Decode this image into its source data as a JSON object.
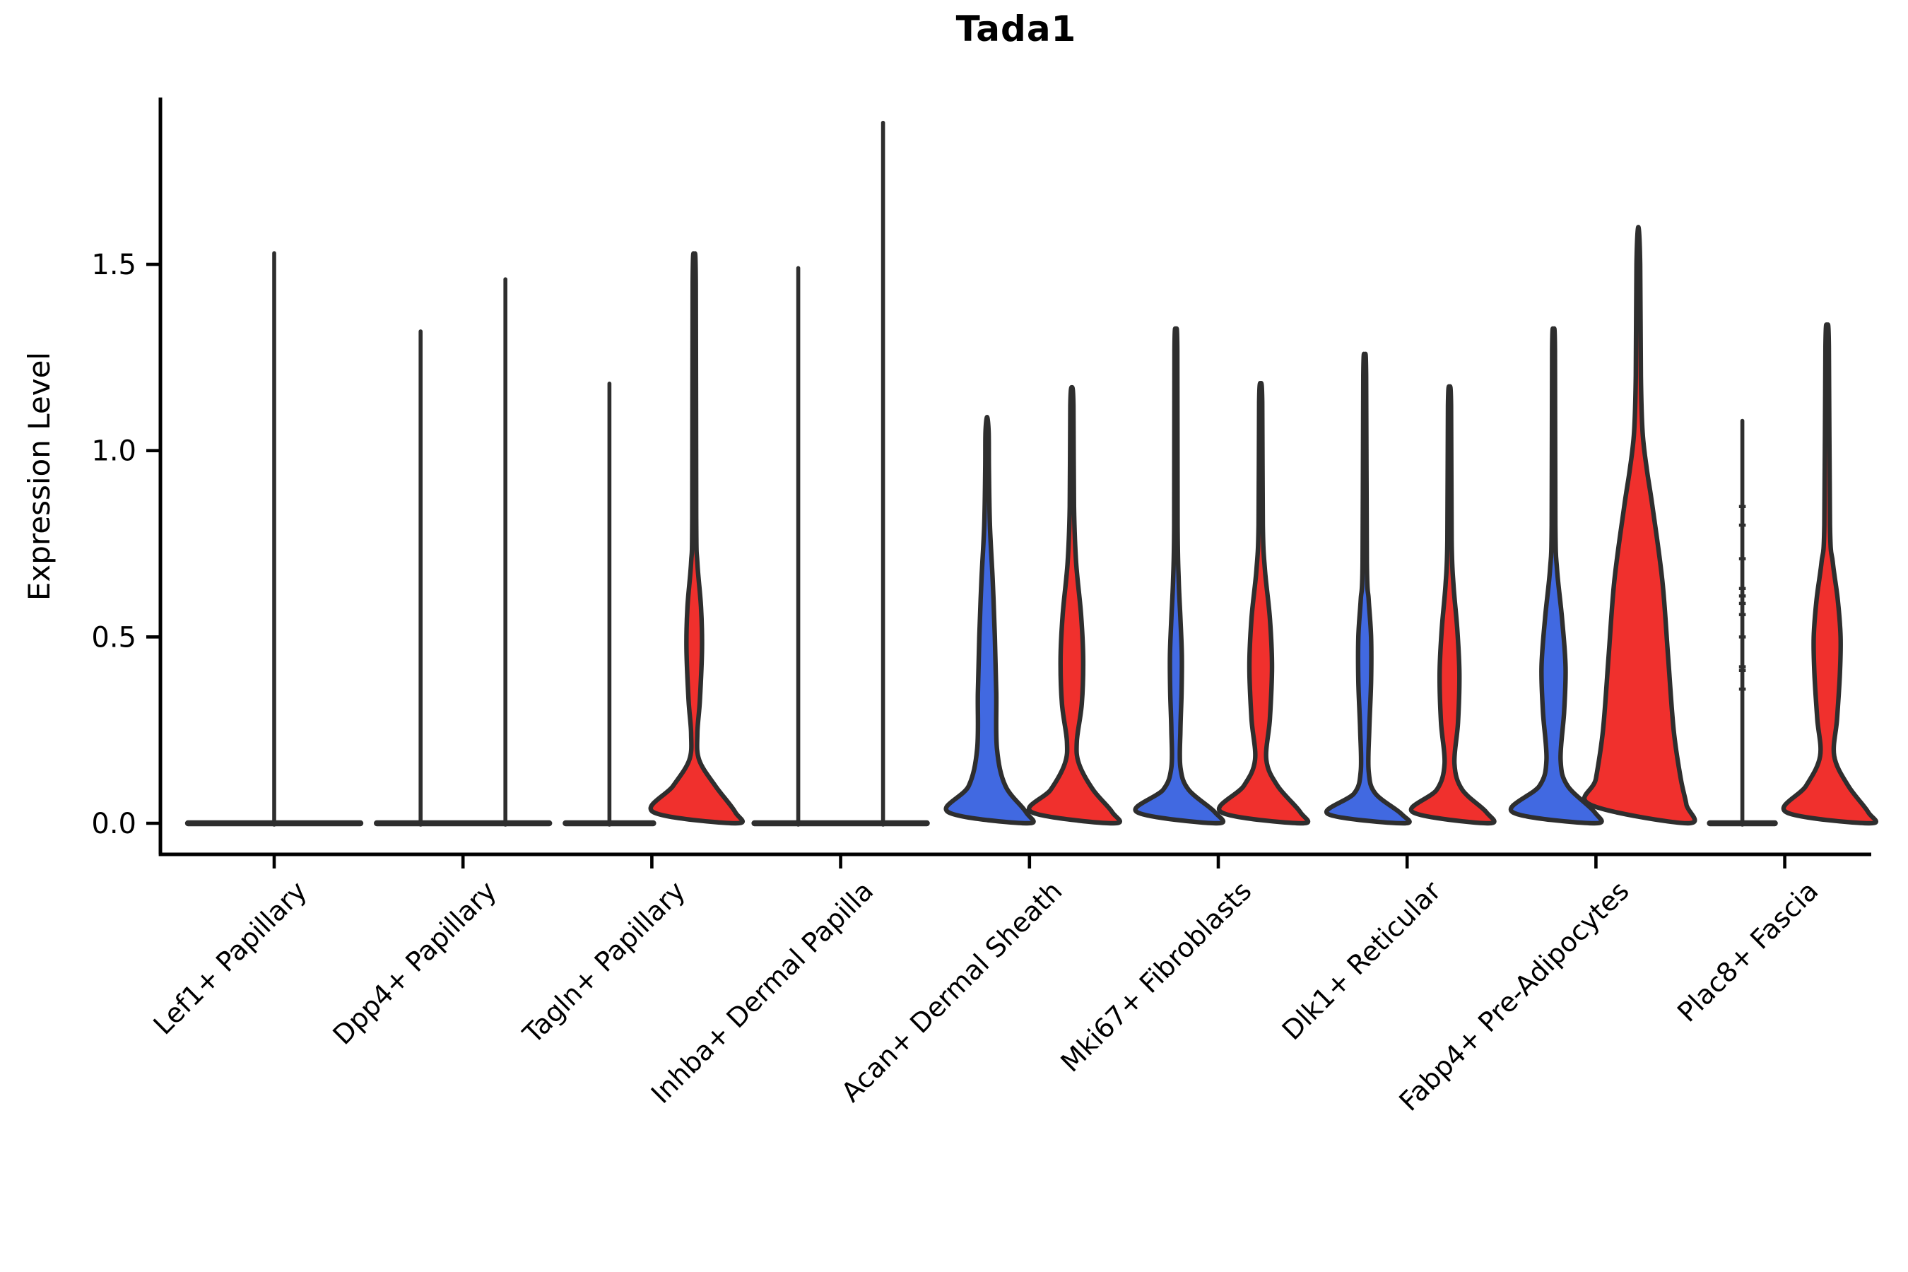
{
  "page": {
    "background": "#ffffff"
  },
  "chart_data": {
    "type": "violin",
    "title": "Tada1",
    "ylabel": "Expression Level",
    "xlabel": "",
    "yticks": [
      "0.0",
      "0.5",
      "1.0",
      "1.5"
    ],
    "ytick_values": [
      0.0,
      0.5,
      1.0,
      1.5
    ],
    "ylim": [
      -0.08,
      1.95
    ],
    "grid": false,
    "legend": "none",
    "colors": {
      "blue": "#4169E1",
      "red": "#F0302D",
      "outline": "#2e2e2e",
      "spine": "#000000"
    },
    "categories": [
      "Lef1+ Papillary",
      "Dpp4+ Papillary",
      "Tagln+ Papillary",
      "Inhba+ Dermal Papilla",
      "Acan+ Dermal Sheath",
      "Mki67+ Fibroblasts",
      "Dlk1+ Reticular",
      "Fabp4+ Pre-Adipocytes",
      "Plac8+ Fascia"
    ],
    "groups": [
      {
        "category": "Lef1+ Papillary",
        "baseline_bar": {
          "offset": 0,
          "half": 61
        },
        "violins": [
          {
            "offset": 0,
            "kind": "collapsed",
            "color": "outline",
            "max": 1.53
          }
        ]
      },
      {
        "category": "Dpp4+ Papillary",
        "baseline_bar": {
          "offset": 0,
          "half": 61
        },
        "violins": [
          {
            "offset": -30,
            "kind": "collapsed",
            "color": "blue",
            "max": 1.32
          },
          {
            "offset": 30,
            "kind": "collapsed",
            "color": "red",
            "max": 1.46
          }
        ]
      },
      {
        "category": "Tagln+ Papillary",
        "baseline_bar": {
          "offset": -30,
          "half": 31
        },
        "violins": [
          {
            "offset": -30,
            "kind": "collapsed",
            "color": "blue",
            "max": 1.18
          },
          {
            "offset": 30,
            "kind": "shaped",
            "color": "red",
            "max": 1.52,
            "profile": [
              [
                0,
                29.5
              ],
              [
                0.03,
                29
              ],
              [
                0.1,
                15
              ],
              [
                0.17,
                3.5
              ],
              [
                0.24,
                2.2
              ],
              [
                0.33,
                4
              ],
              [
                0.47,
                5.5
              ],
              [
                0.58,
                4.8
              ],
              [
                0.7,
                2.2
              ],
              [
                0.82,
                1.4
              ],
              [
                1.45,
                1.1
              ],
              [
                1.52,
                0
              ]
            ]
          }
        ]
      },
      {
        "category": "Inhba+ Dermal Papilla",
        "baseline_bar": {
          "offset": 0,
          "half": 61
        },
        "violins": [
          {
            "offset": -30,
            "kind": "collapsed",
            "color": "blue",
            "max": 1.49
          },
          {
            "offset": 30,
            "kind": "collapsed",
            "color": "red",
            "max": 1.88
          }
        ]
      },
      {
        "category": "Acan+ Dermal Sheath",
        "baseline_bar": null,
        "violins": [
          {
            "offset": -30,
            "kind": "shaped",
            "color": "blue",
            "max": 1.09,
            "profile": [
              [
                0,
                28.5
              ],
              [
                0.03,
                27.5
              ],
              [
                0.1,
                13
              ],
              [
                0.2,
                7
              ],
              [
                0.35,
                6.5
              ],
              [
                0.5,
                5.5
              ],
              [
                0.65,
                4
              ],
              [
                0.8,
                2
              ],
              [
                0.95,
                1.3
              ],
              [
                1.05,
                1.1
              ],
              [
                1.09,
                0
              ]
            ]
          },
          {
            "offset": 30,
            "kind": "shaped",
            "color": "red",
            "max": 1.17,
            "profile": [
              [
                0,
                29.5
              ],
              [
                0.03,
                28.5
              ],
              [
                0.09,
                15
              ],
              [
                0.16,
                5
              ],
              [
                0.22,
                3.5
              ],
              [
                0.32,
                7
              ],
              [
                0.44,
                8
              ],
              [
                0.56,
                6.5
              ],
              [
                0.7,
                3
              ],
              [
                0.85,
                1.5
              ],
              [
                1.12,
                1.1
              ],
              [
                1.17,
                0
              ]
            ]
          }
        ]
      },
      {
        "category": "Mki67+ Fibroblasts",
        "baseline_bar": null,
        "violins": [
          {
            "offset": -30,
            "kind": "shaped",
            "color": "blue",
            "max": 1.32,
            "profile": [
              [
                0,
                29
              ],
              [
                0.03,
                27.5
              ],
              [
                0.09,
                9
              ],
              [
                0.15,
                3.2
              ],
              [
                0.25,
                3.2
              ],
              [
                0.35,
                4
              ],
              [
                0.45,
                4.2
              ],
              [
                0.55,
                3.2
              ],
              [
                0.65,
                2
              ],
              [
                0.8,
                1.2
              ],
              [
                1.27,
                1
              ],
              [
                1.32,
                0
              ]
            ]
          },
          {
            "offset": 30,
            "kind": "shaped",
            "color": "red",
            "max": 1.18,
            "profile": [
              [
                0,
                29
              ],
              [
                0.03,
                28
              ],
              [
                0.1,
                12
              ],
              [
                0.17,
                4
              ],
              [
                0.28,
                6.5
              ],
              [
                0.42,
                8
              ],
              [
                0.55,
                6.5
              ],
              [
                0.68,
                3
              ],
              [
                0.8,
                1.5
              ],
              [
                1.13,
                1.1
              ],
              [
                1.18,
                0
              ]
            ]
          }
        ]
      },
      {
        "category": "Dlk1+ Reticular",
        "baseline_bar": null,
        "violins": [
          {
            "offset": -30,
            "kind": "shaped",
            "color": "blue",
            "max": 1.25,
            "profile": [
              [
                0,
                27.5
              ],
              [
                0.025,
                26
              ],
              [
                0.08,
                7.5
              ],
              [
                0.14,
                2.8
              ],
              [
                0.25,
                3.2
              ],
              [
                0.38,
                4.5
              ],
              [
                0.5,
                4.5
              ],
              [
                0.6,
                2.8
              ],
              [
                0.7,
                1.5
              ],
              [
                1.2,
                1
              ],
              [
                1.25,
                0
              ]
            ]
          },
          {
            "offset": 30,
            "kind": "shaped",
            "color": "red",
            "max": 1.17,
            "profile": [
              [
                0,
                27.5
              ],
              [
                0.03,
                26
              ],
              [
                0.09,
                9
              ],
              [
                0.16,
                3.5
              ],
              [
                0.27,
                6
              ],
              [
                0.4,
                7
              ],
              [
                0.52,
                5.5
              ],
              [
                0.64,
                2.8
              ],
              [
                0.76,
                1.5
              ],
              [
                1.12,
                1.1
              ],
              [
                1.17,
                0
              ]
            ]
          }
        ]
      },
      {
        "category": "Fabp4+ Pre-Adipocytes",
        "baseline_bar": null,
        "violins": [
          {
            "offset": -30,
            "kind": "shaped",
            "color": "blue",
            "max": 1.32,
            "profile": [
              [
                0,
                29
              ],
              [
                0.03,
                29
              ],
              [
                0.1,
                10
              ],
              [
                0.17,
                5
              ],
              [
                0.3,
                7.5
              ],
              [
                0.42,
                8.5
              ],
              [
                0.55,
                6
              ],
              [
                0.68,
                2.5
              ],
              [
                0.8,
                1.3
              ],
              [
                1.27,
                1
              ],
              [
                1.32,
                0
              ]
            ]
          },
          {
            "offset": 30,
            "kind": "shaped",
            "color": "red",
            "max": 1.6,
            "profile": [
              [
                0,
                35
              ],
              [
                0.05,
                34
              ],
              [
                0.12,
                30
              ],
              [
                0.25,
                25
              ],
              [
                0.45,
                21
              ],
              [
                0.65,
                17
              ],
              [
                0.85,
                10
              ],
              [
                0.95,
                6
              ],
              [
                1.05,
                3
              ],
              [
                1.2,
                1.8
              ],
              [
                1.5,
                1.3
              ],
              [
                1.6,
                0
              ]
            ]
          }
        ]
      },
      {
        "category": "Plac8+ Fascia",
        "baseline_bar": {
          "offset": -30,
          "half": 23
        },
        "violins": [
          {
            "offset": -30,
            "kind": "collapsed",
            "color": "blue",
            "max": 1.08,
            "knots": [
              0.36,
              0.41,
              0.42,
              0.5,
              0.56,
              0.59,
              0.61,
              0.63,
              0.71,
              0.8,
              0.85
            ]
          },
          {
            "offset": 30,
            "kind": "shaped",
            "color": "red",
            "max": 1.33,
            "profile": [
              [
                0,
                30
              ],
              [
                0.03,
                29
              ],
              [
                0.1,
                15
              ],
              [
                0.18,
                5
              ],
              [
                0.28,
                7
              ],
              [
                0.4,
                9
              ],
              [
                0.5,
                9.5
              ],
              [
                0.6,
                7.5
              ],
              [
                0.7,
                4
              ],
              [
                0.8,
                2
              ],
              [
                1.28,
                1.2
              ],
              [
                1.33,
                0
              ]
            ]
          }
        ]
      }
    ]
  }
}
